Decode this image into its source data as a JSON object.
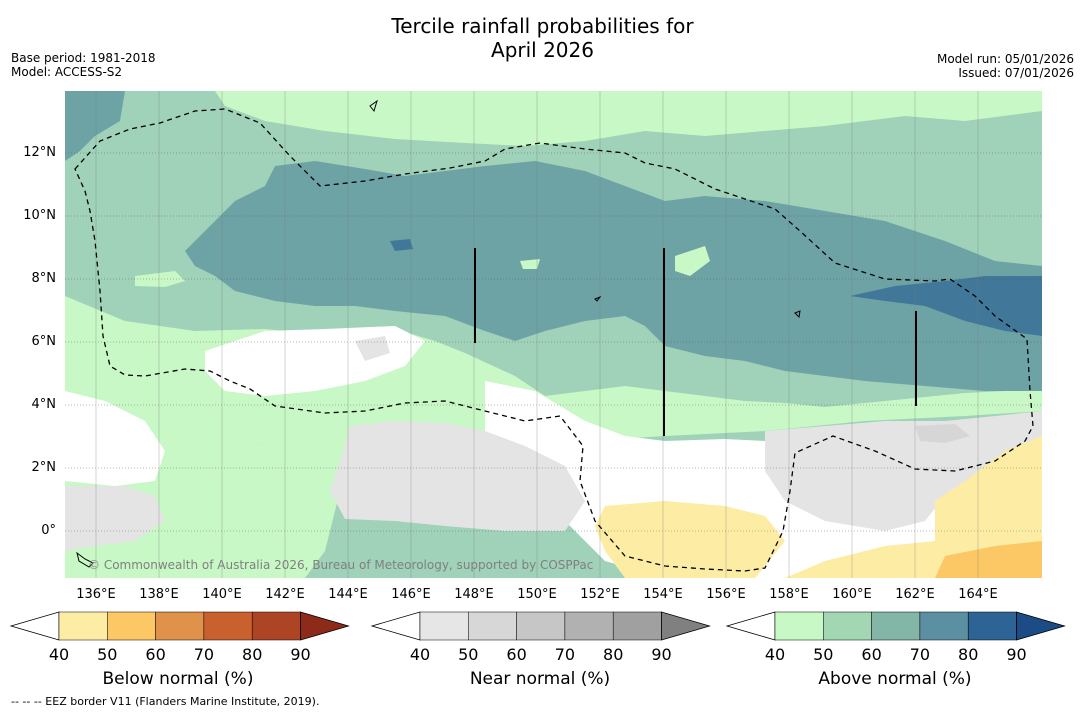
{
  "title_line1": "Tercile rainfall probabilities for",
  "title_line2": "April 2026",
  "base_period": "Base period: 1981-2018",
  "model": "Model: ACCESS-S2",
  "model_run": "Model run: 05/01/2026",
  "issued": "Issued: 07/01/2026",
  "credit": "© Commonwealth of Australia 2026, Bureau of Meteorology, supported by COSPPac",
  "footnote": "-- -- -- EEZ border V11 (Flanders Marine Institute, 2019).",
  "lat_labels": [
    "12°N",
    "10°N",
    "8°N",
    "6°N",
    "4°N",
    "2°N",
    "0°"
  ],
  "lon_labels": [
    "136°E",
    "138°E",
    "140°E",
    "142°E",
    "144°E",
    "146°E",
    "148°E",
    "150°E",
    "152°E",
    "154°E",
    "156°E",
    "158°E",
    "160°E",
    "162°E",
    "164°E"
  ],
  "legends": [
    {
      "title": "Below normal (%)",
      "ticks": [
        "40",
        "50",
        "60",
        "70",
        "80",
        "90"
      ],
      "colors": [
        "#ffffff",
        "#fdeca4",
        "#fcc865",
        "#e0914a",
        "#c9612f",
        "#ad4424",
        "#8e2a1a"
      ]
    },
    {
      "title": "Near normal (%)",
      "ticks": [
        "40",
        "50",
        "60",
        "70",
        "80",
        "90"
      ],
      "colors": [
        "#ffffff",
        "#e6e6e6",
        "#d7d7d7",
        "#c6c6c6",
        "#b1b1b1",
        "#a0a0a0",
        "#808080"
      ]
    },
    {
      "title": "Above normal (%)",
      "ticks": [
        "40",
        "50",
        "60",
        "70",
        "80",
        "90"
      ],
      "colors": [
        "#ffffff",
        "#c8f8c5",
        "#a3d7b4",
        "#84b6a8",
        "#5b8fa1",
        "#2d6495",
        "#1b4c86"
      ]
    }
  ],
  "map_colors": {
    "above_50": "#c8f8c5",
    "above_60": "#9fd2b9",
    "above_70": "#6ea3a6",
    "above_80": "#41789a",
    "near_50": "#e4e4e4",
    "near_60": "#d6d6d6",
    "below_50": "#fdeca4",
    "below_60": "#fcc865"
  }
}
